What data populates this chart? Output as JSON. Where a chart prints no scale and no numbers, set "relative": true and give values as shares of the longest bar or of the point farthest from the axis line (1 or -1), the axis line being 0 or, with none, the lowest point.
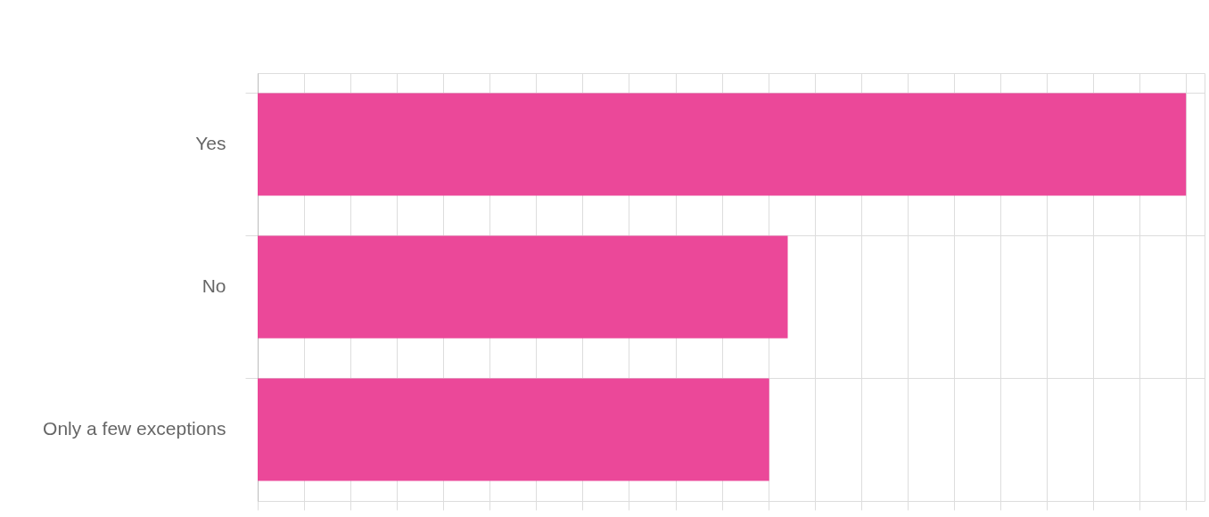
{
  "chart_data": {
    "type": "bar",
    "orientation": "horizontal",
    "relative": true,
    "categories": [
      "Yes",
      "No",
      "Only a few exceptions"
    ],
    "values": [
      1,
      0.571,
      0.551
    ],
    "color": "#eb4899",
    "grid": true
  }
}
